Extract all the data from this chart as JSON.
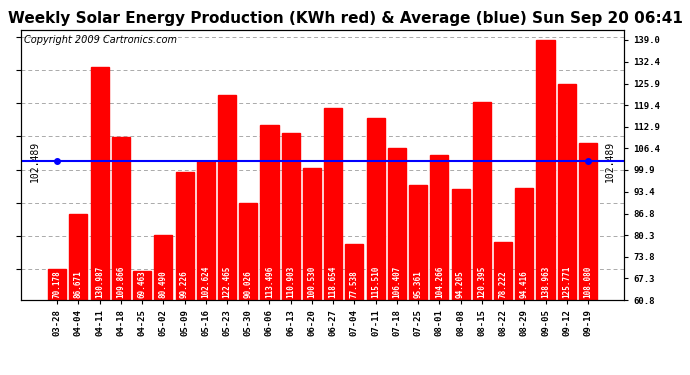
{
  "title": "Weekly Solar Energy Production (KWh red) & Average (blue) Sun Sep 20 06:41",
  "copyright": "Copyright 2009 Cartronics.com",
  "categories": [
    "03-28",
    "04-04",
    "04-11",
    "04-18",
    "04-25",
    "05-02",
    "05-09",
    "05-16",
    "05-23",
    "05-30",
    "06-06",
    "06-13",
    "06-20",
    "06-27",
    "07-04",
    "07-11",
    "07-18",
    "07-25",
    "08-01",
    "08-08",
    "08-15",
    "08-22",
    "08-29",
    "09-05",
    "09-12",
    "09-19"
  ],
  "values": [
    70.178,
    86.671,
    130.987,
    109.866,
    69.463,
    80.49,
    99.226,
    102.624,
    122.465,
    90.026,
    113.496,
    110.903,
    100.53,
    118.654,
    77.538,
    115.51,
    106.407,
    95.361,
    104.266,
    94.205,
    120.395,
    78.222,
    94.416,
    138.963,
    125.771,
    108.08
  ],
  "average": 102.489,
  "bar_color": "#ff0000",
  "avg_line_color": "#0000ff",
  "background_color": "#ffffff",
  "plot_bg_color": "#ffffff",
  "grid_color": "#aaaaaa",
  "ylabel_right": [
    "139.0",
    "132.4",
    "125.9",
    "119.4",
    "112.9",
    "106.4",
    "99.9",
    "93.4",
    "86.8",
    "80.3",
    "73.8",
    "67.3",
    "60.8"
  ],
  "ytick_vals": [
    139.0,
    132.4,
    125.9,
    119.4,
    112.9,
    106.4,
    99.9,
    93.4,
    86.8,
    80.3,
    73.8,
    67.3,
    60.8
  ],
  "ylim": [
    60.8,
    142.0
  ],
  "avg_label": "102.489",
  "title_fontsize": 11,
  "copyright_fontsize": 7,
  "tick_fontsize": 6.5,
  "bar_value_fontsize": 5.5,
  "avg_fontsize": 7
}
